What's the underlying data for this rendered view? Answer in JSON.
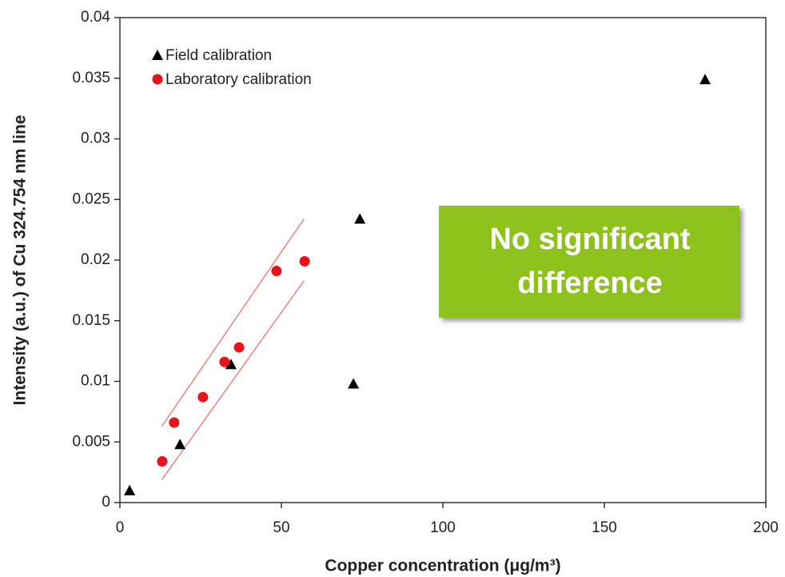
{
  "chart_data": {
    "type": "scatter",
    "xlabel": "Copper concentration (μg/m³)",
    "ylabel": "Intensity (a.u.) of Cu 324.754 nm line",
    "xlim": [
      0,
      200
    ],
    "xticks": [
      0,
      50,
      100,
      150,
      200
    ],
    "ylim": [
      0,
      0.04
    ],
    "yticks": [
      0,
      0.005,
      0.01,
      0.015,
      0.02,
      0.025,
      0.03,
      0.035,
      0.04
    ],
    "legend": "upper left",
    "series": [
      {
        "name": "Field calibration",
        "color": "#000000",
        "marker": "triangle",
        "x": [
          3,
          18.6,
          34.4,
          72.3,
          74.3,
          181.2
        ],
        "values": [
          0.001,
          0.0048,
          0.0114,
          0.0098,
          0.0234,
          0.0349
        ]
      },
      {
        "name": "Laboratory calibration",
        "color": "#e8141b",
        "marker": "circle",
        "x": [
          13.1,
          16.8,
          25.7,
          32.4,
          36.9,
          48.5,
          57.2
        ],
        "values": [
          0.0034,
          0.0066,
          0.0087,
          0.0116,
          0.0128,
          0.0191,
          0.0199
        ]
      }
    ],
    "lines": [
      {
        "color": "#f07070",
        "x": [
          13,
          57
        ],
        "values": [
          0.0063,
          0.0234
        ]
      },
      {
        "color": "#f07070",
        "x": [
          13,
          57
        ],
        "values": [
          0.0019,
          0.0183
        ]
      }
    ],
    "annotation": {
      "lines": [
        "No significant",
        "difference"
      ],
      "color": "#8dc21f"
    }
  }
}
